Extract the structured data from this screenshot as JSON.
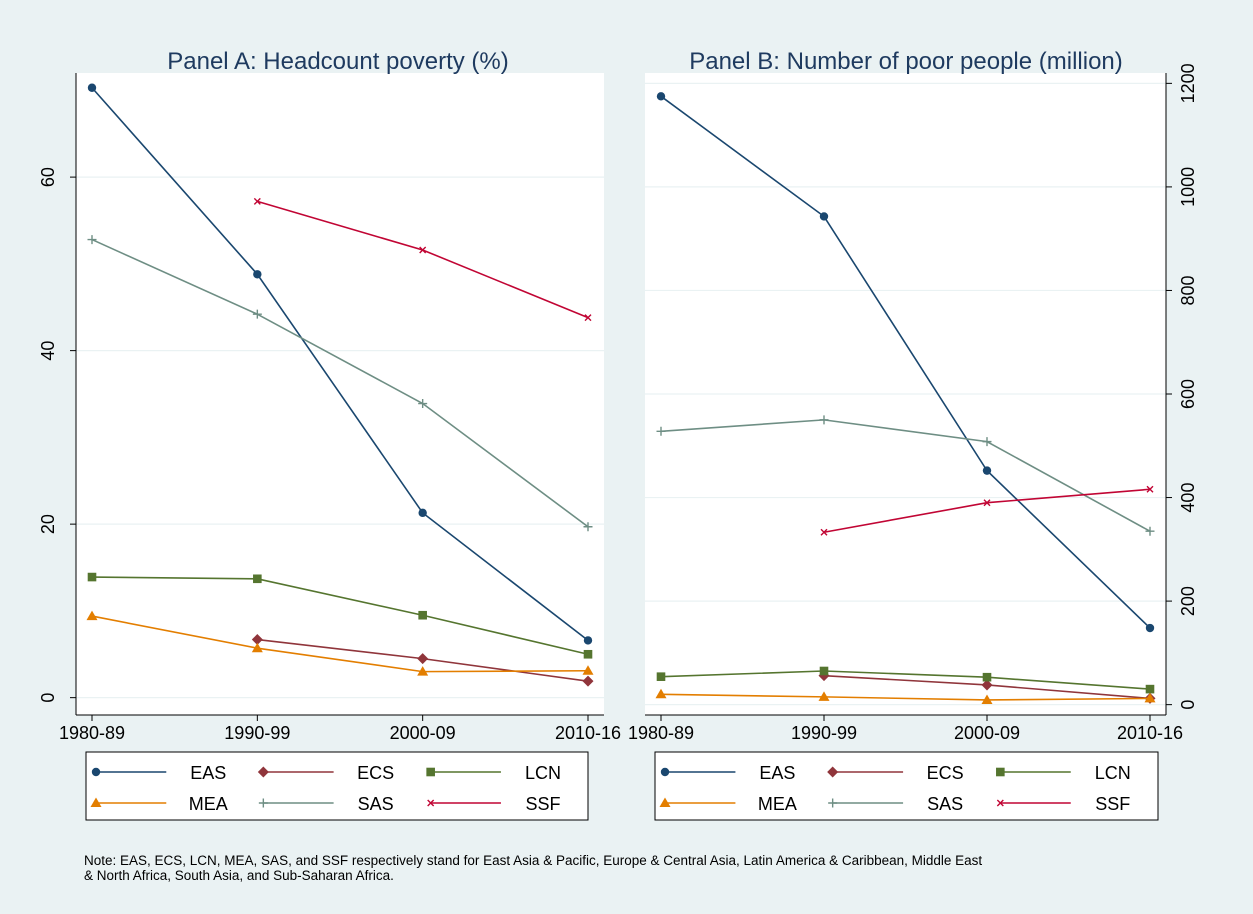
{
  "chart_data": [
    {
      "type": "line",
      "title": "Panel A: Headcount poverty (%)",
      "xlabel": "",
      "ylabel": "",
      "categories": [
        "1980-89",
        "1990-99",
        "2000-09",
        "2010-16"
      ],
      "ylim": [
        -2,
        72
      ],
      "yticks": [
        0,
        20,
        40,
        60
      ],
      "y_axis_side": "left",
      "grid": true,
      "legend_position": "bottom",
      "series": [
        {
          "name": "EAS",
          "values": [
            70.3,
            48.8,
            21.3,
            6.6
          ]
        },
        {
          "name": "ECS",
          "values": [
            null,
            6.7,
            4.5,
            1.9
          ]
        },
        {
          "name": "LCN",
          "values": [
            13.9,
            13.7,
            9.5,
            5.0
          ]
        },
        {
          "name": "MEA",
          "values": [
            9.4,
            5.7,
            3.0,
            3.1
          ]
        },
        {
          "name": "SAS",
          "values": [
            52.8,
            44.2,
            33.9,
            19.7
          ]
        },
        {
          "name": "SSF",
          "values": [
            null,
            57.2,
            51.6,
            43.8
          ]
        }
      ]
    },
    {
      "type": "line",
      "title": "Panel B: Number of poor people (million)",
      "xlabel": "",
      "ylabel": "",
      "categories": [
        "1980-89",
        "1990-99",
        "2000-09",
        "2010-16"
      ],
      "ylim": [
        -20,
        1220
      ],
      "yticks": [
        0,
        200,
        400,
        600,
        800,
        1000,
        1200
      ],
      "y_axis_side": "right",
      "grid": true,
      "legend_position": "bottom",
      "series": [
        {
          "name": "EAS",
          "values": [
            1175,
            943,
            452,
            148
          ]
        },
        {
          "name": "ECS",
          "values": [
            null,
            56,
            38,
            12
          ]
        },
        {
          "name": "LCN",
          "values": [
            54,
            65,
            53,
            30
          ]
        },
        {
          "name": "MEA",
          "values": [
            20,
            15,
            9,
            12
          ]
        },
        {
          "name": "SAS",
          "values": [
            528,
            550,
            508,
            335
          ]
        },
        {
          "name": "SSF",
          "values": [
            null,
            333,
            390,
            416
          ]
        }
      ]
    }
  ],
  "series_styles": [
    {
      "name": "EAS",
      "color": "#1a476f",
      "marker": "circle"
    },
    {
      "name": "ECS",
      "color": "#90353b",
      "marker": "diamond"
    },
    {
      "name": "LCN",
      "color": "#55752f",
      "marker": "square"
    },
    {
      "name": "MEA",
      "color": "#e37e00",
      "marker": "triangle"
    },
    {
      "name": "SAS",
      "color": "#6e8e84",
      "marker": "plus"
    },
    {
      "name": "SSF",
      "color": "#c10534",
      "marker": "x"
    }
  ],
  "note": {
    "line1": "Note: EAS, ECS, LCN, MEA, SAS, and SSF respectively stand for East Asia & Pacific, Europe & Central Asia, Latin America & Caribbean, Middle East",
    "line2": "& North Africa, South Asia, and Sub-Saharan Africa."
  }
}
